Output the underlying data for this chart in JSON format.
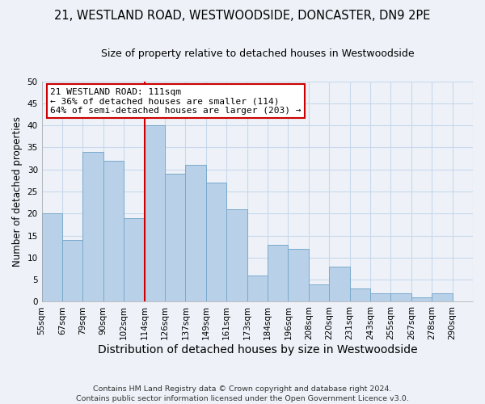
{
  "title": "21, WESTLAND ROAD, WESTWOODSIDE, DONCASTER, DN9 2PE",
  "subtitle": "Size of property relative to detached houses in Westwoodside",
  "xlabel": "Distribution of detached houses by size in Westwoodside",
  "ylabel": "Number of detached properties",
  "bin_labels": [
    "55sqm",
    "67sqm",
    "79sqm",
    "90sqm",
    "102sqm",
    "114sqm",
    "126sqm",
    "137sqm",
    "149sqm",
    "161sqm",
    "173sqm",
    "184sqm",
    "196sqm",
    "208sqm",
    "220sqm",
    "231sqm",
    "243sqm",
    "255sqm",
    "267sqm",
    "278sqm",
    "290sqm"
  ],
  "bar_heights": [
    20,
    14,
    34,
    32,
    19,
    40,
    29,
    31,
    27,
    21,
    6,
    13,
    12,
    4,
    8,
    3,
    2,
    2,
    1,
    2,
    0
  ],
  "bar_color": "#b8d0e8",
  "bar_edge_color": "#7aaacc",
  "vline_x_index": 5,
  "vline_color": "#cc0000",
  "annotation_text": "21 WESTLAND ROAD: 111sqm\n← 36% of detached houses are smaller (114)\n64% of semi-detached houses are larger (203) →",
  "annotation_box_facecolor": "#ffffff",
  "annotation_box_edgecolor": "#cc0000",
  "ylim": [
    0,
    50
  ],
  "yticks": [
    0,
    5,
    10,
    15,
    20,
    25,
    30,
    35,
    40,
    45,
    50
  ],
  "grid_color": "#c8d8ec",
  "background_color": "#eef2f8",
  "plot_bg_color": "#eef2f8",
  "footer": "Contains HM Land Registry data © Crown copyright and database right 2024.\nContains public sector information licensed under the Open Government Licence v3.0.",
  "title_fontsize": 10.5,
  "subtitle_fontsize": 9,
  "xlabel_fontsize": 10,
  "ylabel_fontsize": 8.5,
  "tick_fontsize": 7.5,
  "annotation_fontsize": 8,
  "footer_fontsize": 6.8
}
